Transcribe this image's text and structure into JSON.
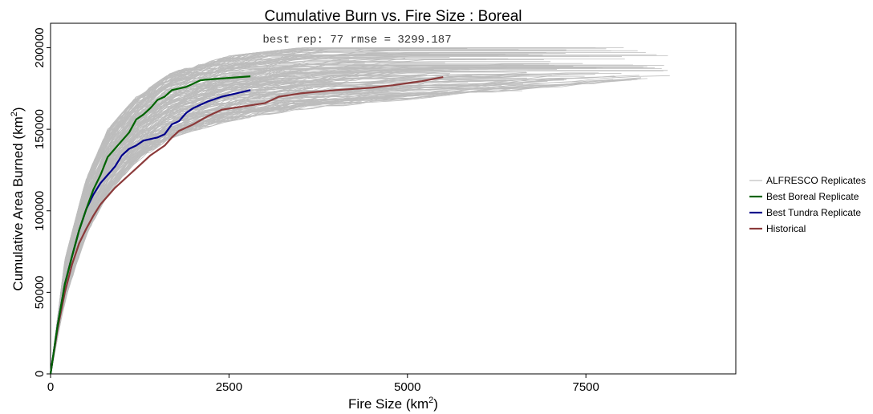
{
  "chart_data": {
    "type": "line",
    "title": "Cumulative Burn vs. Fire Size : Boreal",
    "xlabel": "Fire Size (km",
    "xlabel_sup": "2",
    "xlabel_end": ")",
    "ylabel": "Cumulative Area Burned (km",
    "ylabel_sup": "2",
    "ylabel_end": ")",
    "annotation": "best rep: 77 rmse = 3299.187",
    "xlim": [
      0,
      9600
    ],
    "ylim": [
      0,
      215000
    ],
    "x_ticks": [
      0,
      2500,
      5000,
      7500
    ],
    "x_tick_labels": [
      "0",
      "2500",
      "5000",
      "7500"
    ],
    "y_ticks": [
      0,
      50000,
      100000,
      150000,
      200000
    ],
    "y_tick_labels": [
      "0",
      "50000",
      "100000",
      "150000",
      "200000"
    ],
    "grid": false,
    "legend_position": "right",
    "replicate_count": 200,
    "replicate_envelope": {
      "x": [
        0,
        200,
        500,
        800,
        1200,
        1700,
        2500,
        3500,
        5000,
        7000,
        8700
      ],
      "y_low": [
        0,
        45000,
        85000,
        110000,
        130000,
        145000,
        155000,
        162000,
        168000,
        175000,
        182000
      ],
      "y_high": [
        0,
        70000,
        120000,
        150000,
        170000,
        185000,
        195000,
        200000,
        200000,
        195000,
        188000
      ],
      "x_end_range": [
        3000,
        8700
      ]
    },
    "series": [
      {
        "name": "ALFRESCO Replicates",
        "color": "#bdbdbd",
        "x": [
          0,
          500,
          1000,
          2000,
          3000,
          5000,
          7000,
          8700
        ],
        "y": [
          0,
          100000,
          140000,
          165000,
          172000,
          178000,
          182000,
          183000
        ]
      },
      {
        "name": "Best Boreal Replicate",
        "color": "#006400",
        "x": [
          0,
          100,
          200,
          300,
          400,
          500,
          600,
          700,
          800,
          900,
          1000,
          1100,
          1200,
          1300,
          1400,
          1500,
          1600,
          1700,
          1800,
          1900,
          2000,
          2100,
          2200,
          2500,
          2800
        ],
        "y": [
          0,
          30000,
          55000,
          72000,
          88000,
          101000,
          113000,
          122000,
          133000,
          138000,
          143000,
          148000,
          156000,
          159000,
          163000,
          168000,
          170000,
          174000,
          175000,
          176000,
          178000,
          180000,
          180500,
          181500,
          182500
        ]
      },
      {
        "name": "Best Tundra Replicate",
        "color": "#00008b",
        "x": [
          0,
          100,
          200,
          300,
          400,
          500,
          600,
          700,
          800,
          900,
          1000,
          1100,
          1200,
          1300,
          1500,
          1600,
          1700,
          1800,
          1900,
          2000,
          2100,
          2200,
          2400,
          2600,
          2800
        ],
        "y": [
          0,
          30000,
          55000,
          72000,
          88000,
          101000,
          110000,
          117000,
          122000,
          127000,
          134000,
          138000,
          140000,
          143000,
          145000,
          147000,
          153000,
          155000,
          160000,
          163000,
          165000,
          167000,
          170000,
          172000,
          174000
        ]
      },
      {
        "name": "Historical",
        "color": "#8b3a3a",
        "x": [
          0,
          100,
          200,
          300,
          400,
          500,
          600,
          700,
          800,
          900,
          1000,
          1100,
          1200,
          1300,
          1400,
          1500,
          1600,
          1700,
          1800,
          1900,
          2000,
          2200,
          2400,
          2700,
          3000,
          3200,
          3500,
          4000,
          4500,
          4800,
          5200,
          5500
        ],
        "y": [
          0,
          28000,
          50000,
          67000,
          80000,
          89000,
          97000,
          104000,
          109000,
          114000,
          118000,
          122000,
          126000,
          130000,
          134000,
          137000,
          140000,
          145000,
          149000,
          151000,
          153000,
          158000,
          162000,
          164000,
          166000,
          170000,
          172000,
          174000,
          175500,
          177000,
          179500,
          182000
        ]
      }
    ]
  }
}
